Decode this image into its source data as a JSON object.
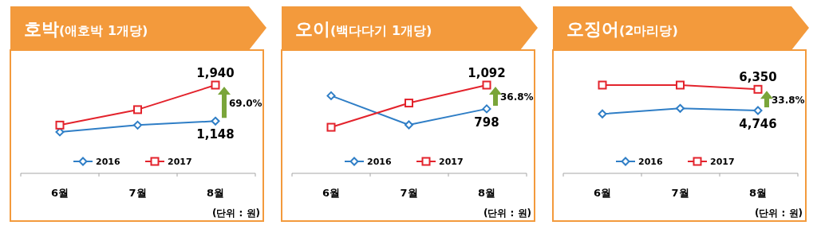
{
  "chart_data": [
    {
      "type": "line",
      "title": "호박(애호박 1개당)",
      "categories": [
        "6월",
        "7월",
        "8월"
      ],
      "legend": "bottom",
      "annotations": [
        "69.0%",
        "(단위 : 원)"
      ],
      "series": [
        {
          "name": "2016",
          "color": "#2f7ec6",
          "marker": "diamond",
          "values": [
            910,
            1060,
            1148
          ],
          "value_labels": [
            null,
            null,
            "1,148"
          ]
        },
        {
          "name": "2017",
          "color": "#e3232c",
          "marker": "square",
          "values": [
            1060,
            1400,
            1940
          ],
          "value_labels": [
            null,
            null,
            "1,940"
          ]
        }
      ]
    },
    {
      "type": "line",
      "title": "오이(백다다기 1개당)",
      "categories": [
        "6월",
        "7월",
        "8월"
      ],
      "legend": "bottom",
      "annotations": [
        "36.8%",
        "(단위 : 원)"
      ],
      "series": [
        {
          "name": "2016",
          "color": "#2f7ec6",
          "marker": "diamond",
          "values": [
            960,
            600,
            798
          ],
          "value_labels": [
            null,
            null,
            "798"
          ]
        },
        {
          "name": "2017",
          "color": "#e3232c",
          "marker": "square",
          "values": [
            570,
            870,
            1092
          ],
          "value_labels": [
            null,
            null,
            "1,092"
          ]
        }
      ]
    },
    {
      "type": "line",
      "title": "오징어(2마리당)",
      "categories": [
        "6월",
        "7월",
        "8월"
      ],
      "legend": "bottom",
      "annotations": [
        "33.8%",
        "(단위 : 원)"
      ],
      "series": [
        {
          "name": "2016",
          "color": "#2f7ec6",
          "marker": "diamond",
          "values": [
            4490,
            4910,
            4746
          ],
          "value_labels": [
            null,
            null,
            "4,746"
          ]
        },
        {
          "name": "2017",
          "color": "#e3232c",
          "marker": "square",
          "values": [
            6670,
            6670,
            6350
          ],
          "value_labels": [
            null,
            null,
            "6,350"
          ]
        }
      ]
    }
  ]
}
